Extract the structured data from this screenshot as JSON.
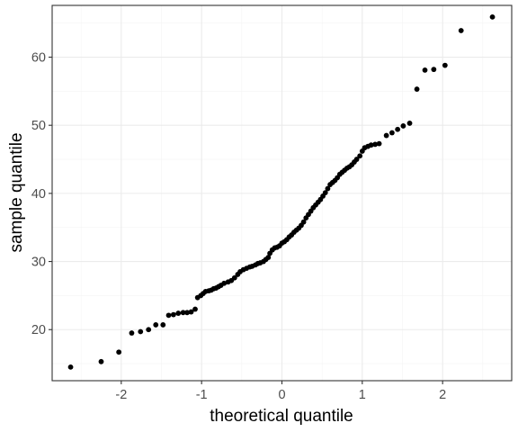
{
  "chart_data": {
    "type": "scatter",
    "title": "",
    "xlabel": "theoretical quantile",
    "ylabel": "sample quantile",
    "xlim": [
      -2.86,
      2.86
    ],
    "ylim": [
      12.5,
      67.6
    ],
    "x_ticks": [
      -2,
      -1,
      0,
      1,
      2
    ],
    "y_ticks": [
      20,
      30,
      40,
      50,
      60
    ],
    "x_tick_labels": [
      "-2",
      "-1",
      "0",
      "1",
      "2"
    ],
    "y_tick_labels": [
      "20",
      "30",
      "40",
      "50",
      "60"
    ],
    "grid": true,
    "legend": "none",
    "point_color": "#000000",
    "series": [
      {
        "points": [
          [
            -2.63,
            14.5
          ],
          [
            -2.25,
            15.3
          ],
          [
            -2.03,
            16.7
          ],
          [
            -1.87,
            19.5
          ],
          [
            -1.76,
            19.7
          ],
          [
            -1.66,
            20.0
          ],
          [
            -1.57,
            20.7
          ],
          [
            -1.48,
            20.7
          ],
          [
            -1.41,
            22.1
          ],
          [
            -1.35,
            22.2
          ],
          [
            -1.29,
            22.4
          ],
          [
            -1.23,
            22.5
          ],
          [
            -1.18,
            22.5
          ],
          [
            -1.13,
            22.6
          ],
          [
            -1.08,
            23.0
          ],
          [
            -1.05,
            24.7
          ],
          [
            -1.01,
            25.0
          ],
          [
            -0.98,
            25.3
          ],
          [
            -0.95,
            25.6
          ],
          [
            -0.91,
            25.7
          ],
          [
            -0.88,
            25.8
          ],
          [
            -0.85,
            26.0
          ],
          [
            -0.82,
            26.1
          ],
          [
            -0.79,
            26.3
          ],
          [
            -0.76,
            26.5
          ],
          [
            -0.72,
            26.8
          ],
          [
            -0.67,
            27.0
          ],
          [
            -0.63,
            27.2
          ],
          [
            -0.59,
            27.6
          ],
          [
            -0.55,
            28.1
          ],
          [
            -0.52,
            28.5
          ],
          [
            -0.48,
            28.8
          ],
          [
            -0.44,
            29.0
          ],
          [
            -0.4,
            29.2
          ],
          [
            -0.37,
            29.3
          ],
          [
            -0.33,
            29.5
          ],
          [
            -0.3,
            29.7
          ],
          [
            -0.27,
            29.8
          ],
          [
            -0.23,
            30.0
          ],
          [
            -0.2,
            30.3
          ],
          [
            -0.17,
            30.6
          ],
          [
            -0.15,
            31.2
          ],
          [
            -0.12,
            31.7
          ],
          [
            -0.09,
            32.0
          ],
          [
            -0.06,
            32.1
          ],
          [
            -0.03,
            32.3
          ],
          [
            0.0,
            32.7
          ],
          [
            0.03,
            32.9
          ],
          [
            0.06,
            33.2
          ],
          [
            0.09,
            33.6
          ],
          [
            0.12,
            33.9
          ],
          [
            0.15,
            34.3
          ],
          [
            0.18,
            34.6
          ],
          [
            0.21,
            34.9
          ],
          [
            0.24,
            35.3
          ],
          [
            0.27,
            35.8
          ],
          [
            0.3,
            36.4
          ],
          [
            0.33,
            36.9
          ],
          [
            0.36,
            37.4
          ],
          [
            0.39,
            37.9
          ],
          [
            0.42,
            38.3
          ],
          [
            0.45,
            38.7
          ],
          [
            0.48,
            39.1
          ],
          [
            0.51,
            39.6
          ],
          [
            0.54,
            40.1
          ],
          [
            0.57,
            40.7
          ],
          [
            0.6,
            41.3
          ],
          [
            0.63,
            41.6
          ],
          [
            0.66,
            41.9
          ],
          [
            0.69,
            42.3
          ],
          [
            0.72,
            42.8
          ],
          [
            0.75,
            43.1
          ],
          [
            0.78,
            43.4
          ],
          [
            0.81,
            43.7
          ],
          [
            0.84,
            43.9
          ],
          [
            0.87,
            44.2
          ],
          [
            0.9,
            44.6
          ],
          [
            0.93,
            45.0
          ],
          [
            0.97,
            45.5
          ],
          [
            1.0,
            46.2
          ],
          [
            1.03,
            46.7
          ],
          [
            1.07,
            46.9
          ],
          [
            1.11,
            47.1
          ],
          [
            1.16,
            47.2
          ],
          [
            1.21,
            47.3
          ],
          [
            1.3,
            48.5
          ],
          [
            1.37,
            48.9
          ],
          [
            1.44,
            49.4
          ],
          [
            1.51,
            49.9
          ],
          [
            1.59,
            50.3
          ],
          [
            1.68,
            55.3
          ],
          [
            1.78,
            58.1
          ],
          [
            1.89,
            58.2
          ],
          [
            2.03,
            58.8
          ],
          [
            2.23,
            63.9
          ],
          [
            2.62,
            65.9
          ]
        ]
      }
    ]
  }
}
